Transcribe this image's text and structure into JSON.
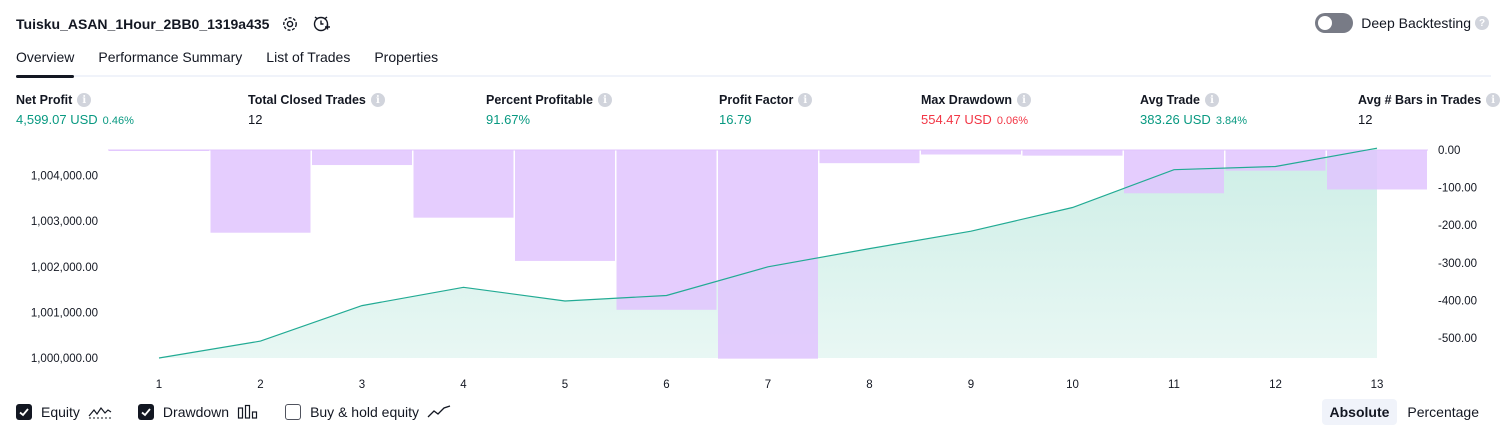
{
  "header": {
    "strategy_name": "Tuisku_ASAN_1Hour_2BB0_1319a435",
    "deep_backtesting_label": "Deep Backtesting",
    "deep_backtesting_enabled": false
  },
  "tabs": [
    {
      "label": "Overview",
      "active": true
    },
    {
      "label": "Performance Summary",
      "active": false
    },
    {
      "label": "List of Trades",
      "active": false
    },
    {
      "label": "Properties",
      "active": false
    }
  ],
  "metrics": {
    "net_profit": {
      "label": "Net Profit",
      "value": "4,599.07 USD",
      "pct": "0.46%"
    },
    "total_closed_trades": {
      "label": "Total Closed Trades",
      "value": "12"
    },
    "percent_profitable": {
      "label": "Percent Profitable",
      "value": "91.67%"
    },
    "profit_factor": {
      "label": "Profit Factor",
      "value": "16.79"
    },
    "max_drawdown": {
      "label": "Max Drawdown",
      "value": "554.47 USD",
      "pct": "0.06%"
    },
    "avg_trade": {
      "label": "Avg Trade",
      "value": "383.26 USD",
      "pct": "3.84%"
    },
    "avg_bars": {
      "label": "Avg # Bars in Trades",
      "value": "12"
    }
  },
  "chart_data": {
    "type": "line",
    "x": [
      1,
      2,
      3,
      4,
      5,
      6,
      7,
      8,
      9,
      10,
      11,
      12,
      13
    ],
    "series": [
      {
        "name": "Equity",
        "axis": "left",
        "type": "area",
        "values": [
          1000000,
          1000370,
          1001150,
          1001550,
          1001250,
          1001370,
          1002000,
          1002400,
          1002780,
          1003300,
          1004130,
          1004200,
          1004600
        ]
      },
      {
        "name": "Drawdown",
        "axis": "right",
        "type": "bar",
        "values": [
          -2,
          -220,
          -40,
          -180,
          -295,
          -425,
          -555,
          -35,
          -12,
          -15,
          -115,
          -55,
          -105
        ]
      }
    ],
    "y_left_ticks": [
      "1,000,000.00",
      "1,001,000.00",
      "1,002,000.00",
      "1,003,000.00",
      "1,004,000.00"
    ],
    "y_right_ticks": [
      "0.00",
      "-100.00",
      "-200.00",
      "-300.00",
      "-400.00",
      "-500.00"
    ],
    "colors": {
      "equity_line": "#22ab94",
      "equity_fill": "#cdeee6",
      "drawdown": "#e1c4fe"
    }
  },
  "legend": {
    "equity_label": "Equity",
    "equity_checked": true,
    "drawdown_label": "Drawdown",
    "drawdown_checked": true,
    "buyhold_label": "Buy & hold equity",
    "buyhold_checked": false
  },
  "modes": {
    "absolute_label": "Absolute",
    "percentage_label": "Percentage",
    "active": "Absolute"
  }
}
